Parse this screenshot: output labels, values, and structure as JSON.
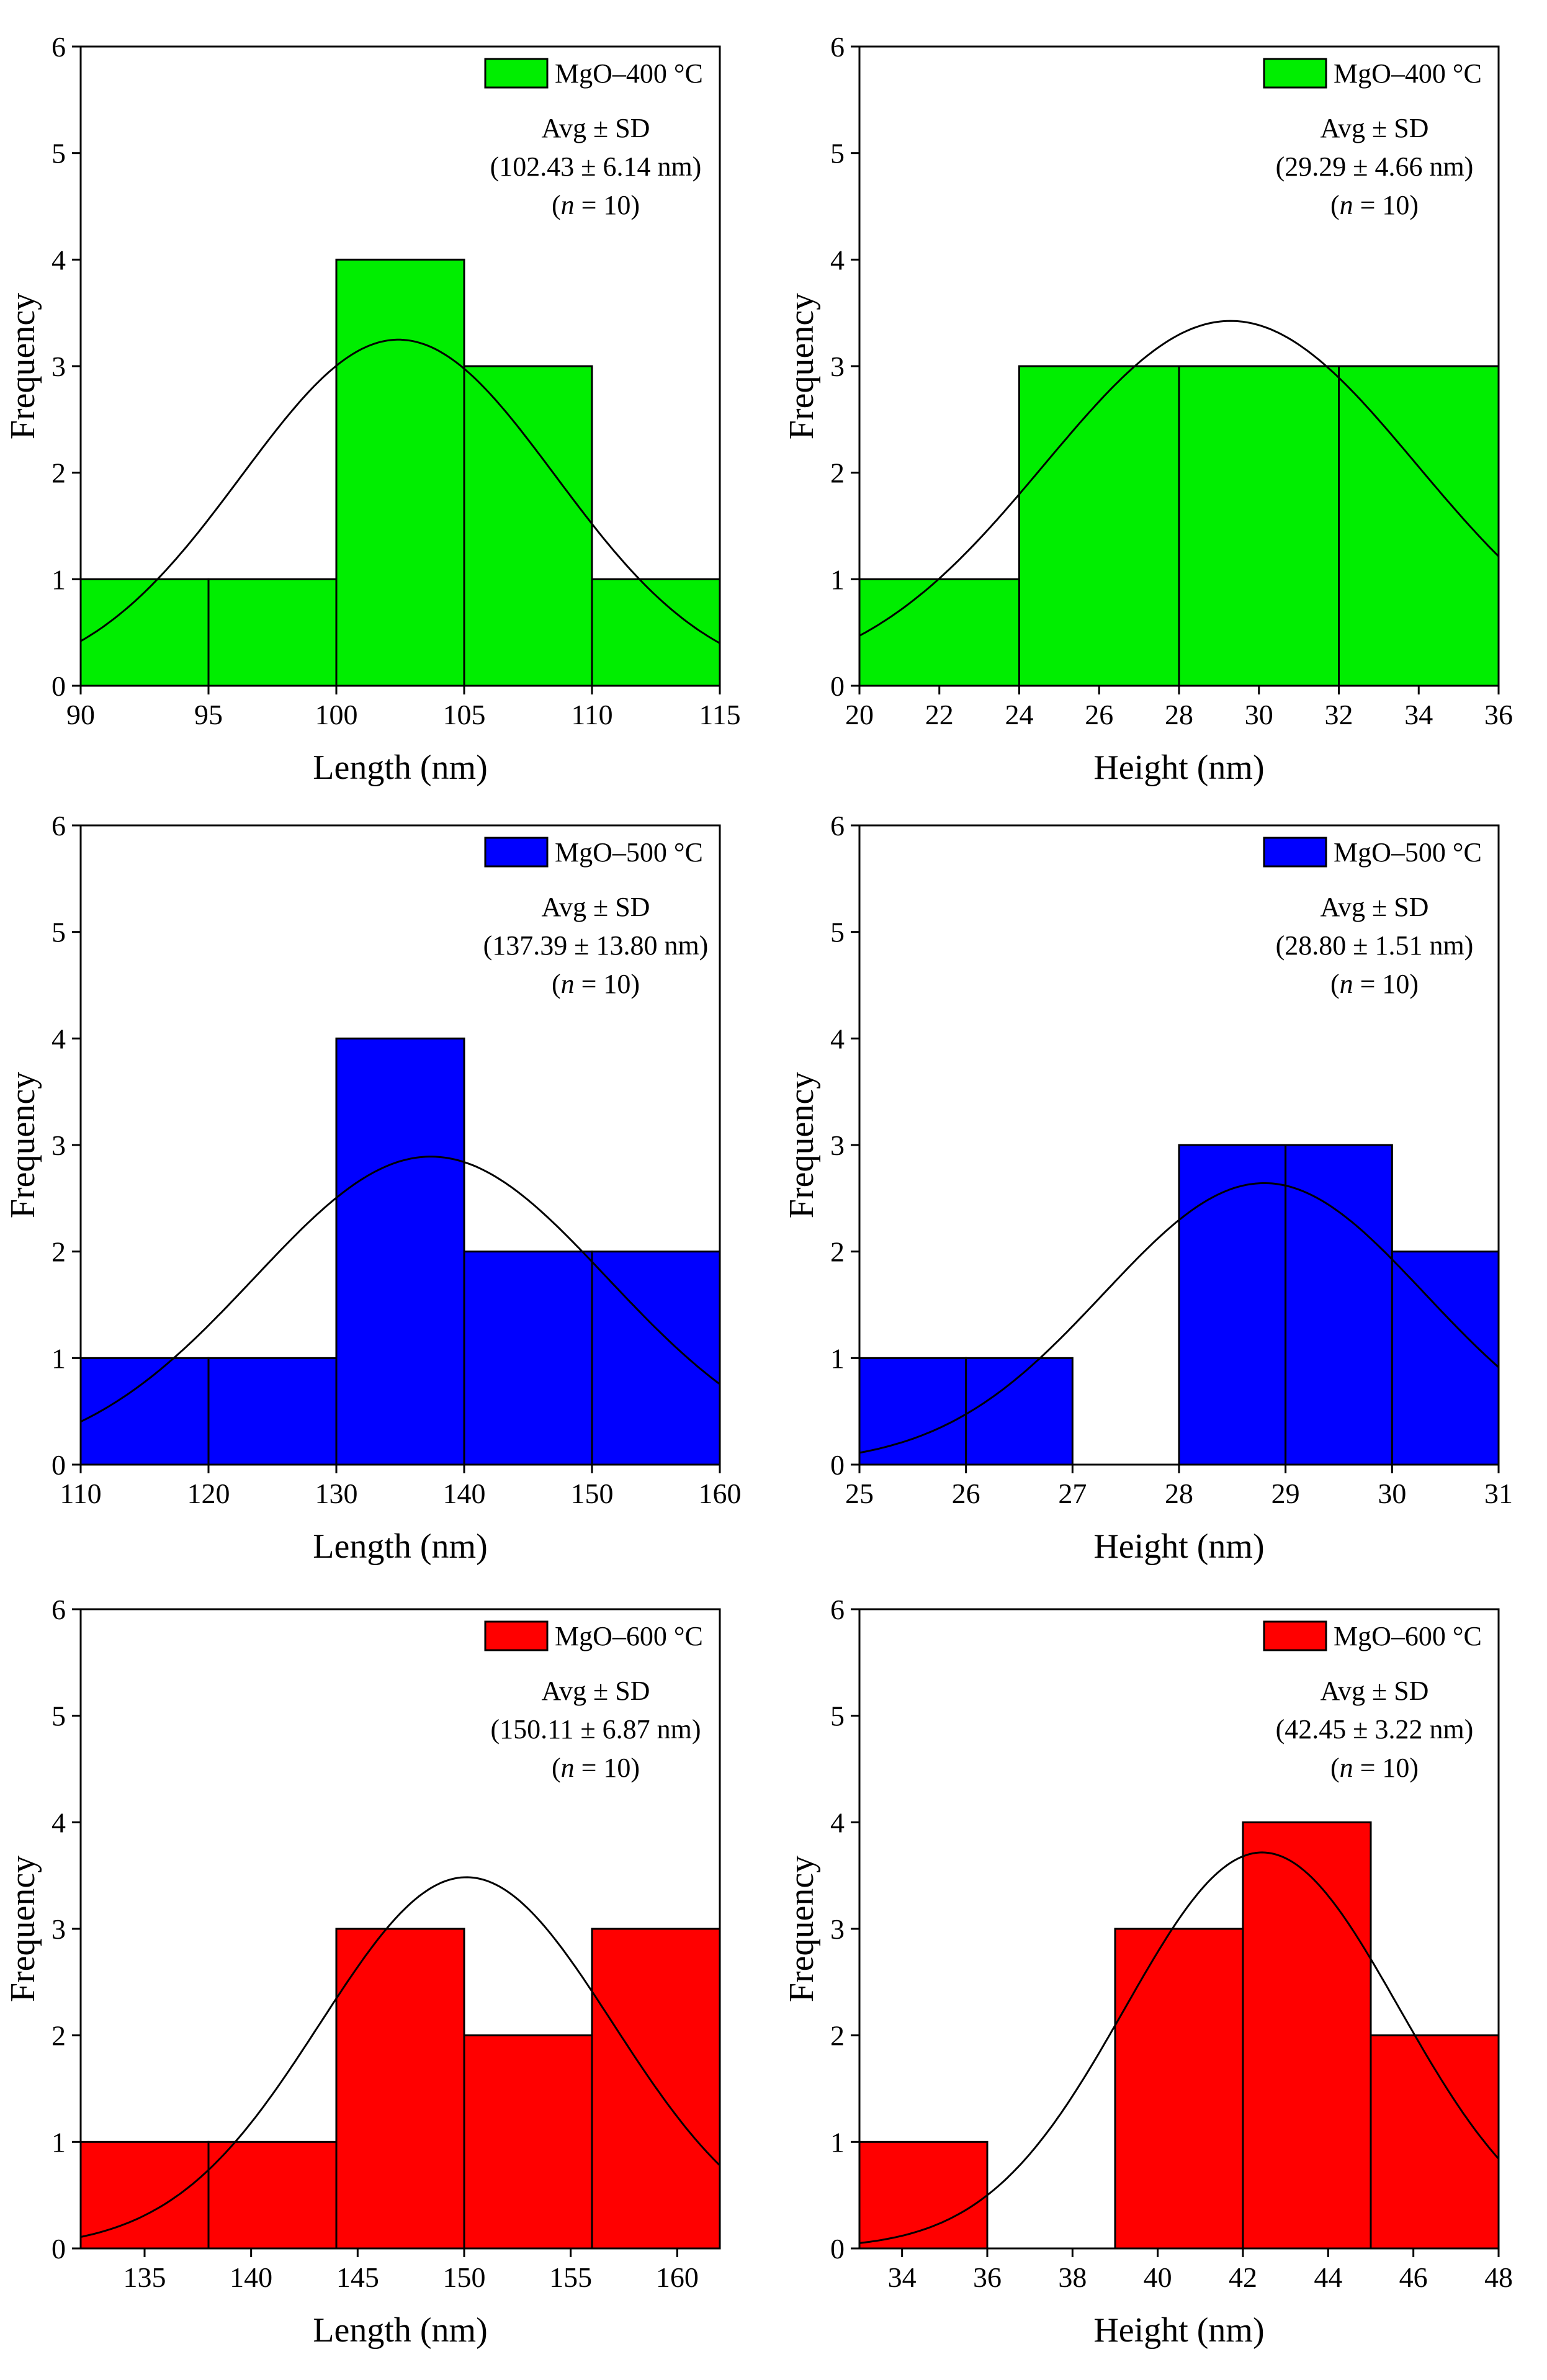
{
  "chart_data": [
    {
      "type": "bar",
      "panel": "length-400",
      "xlabel": "Length (nm)",
      "ylabel": "Frequency",
      "xlim": [
        90,
        115
      ],
      "ylim": [
        0,
        6
      ],
      "xticks": [
        "90",
        "95",
        "100",
        "105",
        "110",
        "115"
      ],
      "yticks": [
        "0",
        "1",
        "2",
        "3",
        "4",
        "5",
        "6"
      ],
      "bins": [
        [
          90,
          95
        ],
        [
          95,
          100
        ],
        [
          100,
          105
        ],
        [
          105,
          110
        ],
        [
          110,
          115
        ]
      ],
      "values": [
        1,
        1,
        4,
        3,
        1
      ],
      "color": "#00ee00",
      "legend": "MgO–400 °C",
      "stats": {
        "line1": "Avg ± SD",
        "line2": "(102.43 ± 6.14 nm)",
        "line3_pre": "(",
        "line3_n": "n",
        "line3_post": " = 10)"
      },
      "curve": {
        "mean": 102.43,
        "sd": 6.14,
        "n": 10,
        "bin_width": 5
      }
    },
    {
      "type": "bar",
      "panel": "height-400",
      "xlabel": "Height (nm)",
      "ylabel": "Frequency",
      "xlim": [
        20,
        36
      ],
      "ylim": [
        0,
        6
      ],
      "xticks": [
        "20",
        "22",
        "24",
        "26",
        "28",
        "30",
        "32",
        "34",
        "36"
      ],
      "yticks": [
        "0",
        "1",
        "2",
        "3",
        "4",
        "5",
        "6"
      ],
      "bins": [
        [
          20,
          24
        ],
        [
          24,
          28
        ],
        [
          28,
          32
        ],
        [
          32,
          36
        ]
      ],
      "values": [
        1,
        3,
        3,
        3
      ],
      "color": "#00ee00",
      "legend": "MgO–400 °C",
      "stats": {
        "line1": "Avg ± SD",
        "line2": "(29.29 ± 4.66 nm)",
        "line3_pre": "(",
        "line3_n": "n",
        "line3_post": " = 10)"
      },
      "curve": {
        "mean": 29.29,
        "sd": 4.66,
        "n": 10,
        "bin_width": 4
      }
    },
    {
      "type": "bar",
      "panel": "length-500",
      "xlabel": "Length (nm)",
      "ylabel": "Frequency",
      "xlim": [
        110,
        160
      ],
      "ylim": [
        0,
        6
      ],
      "xticks": [
        "110",
        "120",
        "130",
        "140",
        "150",
        "160"
      ],
      "yticks": [
        "0",
        "1",
        "2",
        "3",
        "4",
        "5",
        "6"
      ],
      "bins": [
        [
          110,
          120
        ],
        [
          120,
          130
        ],
        [
          130,
          140
        ],
        [
          140,
          150
        ],
        [
          150,
          160
        ]
      ],
      "values": [
        1,
        1,
        4,
        2,
        2
      ],
      "color": "#0000ff",
      "legend": "MgO–500 °C",
      "stats": {
        "line1": "Avg ± SD",
        "line2": "(137.39 ± 13.80 nm)",
        "line3_pre": "(",
        "line3_n": "n",
        "line3_post": " = 10)"
      },
      "curve": {
        "mean": 137.39,
        "sd": 13.8,
        "n": 10,
        "bin_width": 10
      }
    },
    {
      "type": "bar",
      "panel": "height-500",
      "xlabel": "Height (nm)",
      "ylabel": "Frequency",
      "xlim": [
        25,
        31
      ],
      "ylim": [
        0,
        6
      ],
      "xticks": [
        "25",
        "26",
        "27",
        "28",
        "29",
        "30",
        "31"
      ],
      "yticks": [
        "0",
        "1",
        "2",
        "3",
        "4",
        "5",
        "6"
      ],
      "bins": [
        [
          25,
          26
        ],
        [
          26,
          27
        ],
        [
          27,
          28
        ],
        [
          28,
          29
        ],
        [
          29,
          30
        ],
        [
          30,
          31
        ]
      ],
      "values": [
        1,
        1,
        0,
        3,
        3,
        2
      ],
      "color": "#0000ff",
      "legend": "MgO–500 °C",
      "stats": {
        "line1": "Avg ± SD",
        "line2": "(28.80 ± 1.51 nm)",
        "line3_pre": "(",
        "line3_n": "n",
        "line3_post": " = 10)"
      },
      "curve": {
        "mean": 28.8,
        "sd": 1.51,
        "n": 10,
        "bin_width": 1
      }
    },
    {
      "type": "bar",
      "panel": "length-600",
      "xlabel": "Length (nm)",
      "ylabel": "Frequency",
      "xlim": [
        132,
        162
      ],
      "ylim": [
        0,
        6
      ],
      "xticks": [
        "135",
        "140",
        "145",
        "150",
        "155",
        "160"
      ],
      "yticks": [
        "0",
        "1",
        "2",
        "3",
        "4",
        "5",
        "6"
      ],
      "bins": [
        [
          132,
          138
        ],
        [
          138,
          144
        ],
        [
          144,
          150
        ],
        [
          150,
          156
        ],
        [
          156,
          162
        ]
      ],
      "values": [
        1,
        1,
        3,
        2,
        3
      ],
      "color": "#ff0000",
      "legend": "MgO–600 °C",
      "stats": {
        "line1": "Avg ± SD",
        "line2": "(150.11 ± 6.87 nm)",
        "line3_pre": "(",
        "line3_n": "n",
        "line3_post": " = 10)"
      },
      "curve": {
        "mean": 150.11,
        "sd": 6.87,
        "n": 10,
        "bin_width": 6
      }
    },
    {
      "type": "bar",
      "panel": "height-600",
      "xlabel": "Height (nm)",
      "ylabel": "Frequency",
      "xlim": [
        33,
        48
      ],
      "ylim": [
        0,
        6
      ],
      "xticks": [
        "34",
        "36",
        "38",
        "40",
        "42",
        "44",
        "46",
        "48"
      ],
      "yticks": [
        "0",
        "1",
        "2",
        "3",
        "4",
        "5",
        "6"
      ],
      "bins": [
        [
          33,
          36
        ],
        [
          36,
          39
        ],
        [
          39,
          42
        ],
        [
          42,
          45
        ],
        [
          45,
          48
        ]
      ],
      "values": [
        1,
        0,
        3,
        4,
        2
      ],
      "color": "#ff0000",
      "legend": "MgO–600 °C",
      "stats": {
        "line1": "Avg ± SD",
        "line2": "(42.45 ± 3.22 nm)",
        "line3_pre": "(",
        "line3_n": "n",
        "line3_post": " = 10)"
      },
      "curve": {
        "mean": 42.45,
        "sd": 3.22,
        "n": 10,
        "bin_width": 3
      }
    }
  ]
}
